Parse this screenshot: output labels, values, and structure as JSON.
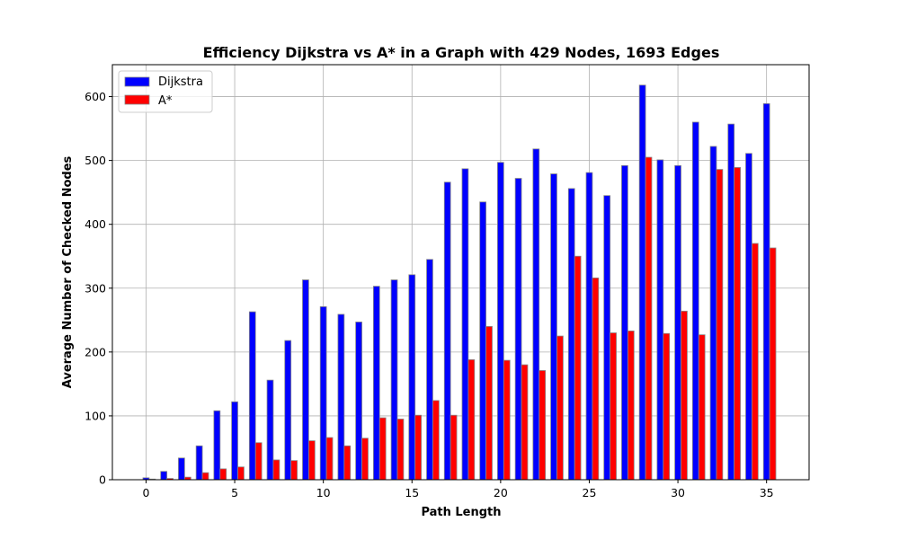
{
  "chart_data": {
    "type": "bar",
    "title": "Efficiency Dijkstra vs A* in a Graph with 429 Nodes, 1693 Edges",
    "xlabel": "Path Length",
    "ylabel": "Average Number of Checked Nodes",
    "x": [
      0,
      1,
      2,
      3,
      4,
      5,
      6,
      7,
      8,
      9,
      10,
      11,
      12,
      13,
      14,
      15,
      16,
      17,
      18,
      19,
      20,
      21,
      22,
      23,
      24,
      25,
      26,
      27,
      28,
      29,
      30,
      31,
      32,
      33,
      34,
      35
    ],
    "series": [
      {
        "name": "Dijkstra",
        "color": "#0000ff",
        "values": [
          3,
          13,
          34,
          53,
          108,
          122,
          263,
          156,
          218,
          313,
          271,
          259,
          247,
          303,
          313,
          321,
          345,
          466,
          487,
          435,
          497,
          472,
          518,
          479,
          456,
          481,
          445,
          492,
          618,
          501,
          492,
          560,
          522,
          557,
          511,
          589
        ]
      },
      {
        "name": "A*",
        "color": "#ff0000",
        "values": [
          1,
          2,
          4,
          11,
          17,
          20,
          58,
          31,
          30,
          61,
          66,
          53,
          65,
          97,
          95,
          101,
          124,
          101,
          188,
          240,
          187,
          180,
          171,
          225,
          350,
          316,
          230,
          233,
          505,
          229,
          264,
          227,
          486,
          489,
          370,
          363
        ]
      }
    ],
    "xlim": [
      -1.9,
      37.4
    ],
    "ylim": [
      0,
      650
    ],
    "xticks": [
      0,
      5,
      10,
      15,
      20,
      25,
      30,
      35
    ],
    "yticks": [
      0,
      100,
      200,
      300,
      400,
      500,
      600
    ],
    "grid": true,
    "legend_position": "top-left"
  }
}
